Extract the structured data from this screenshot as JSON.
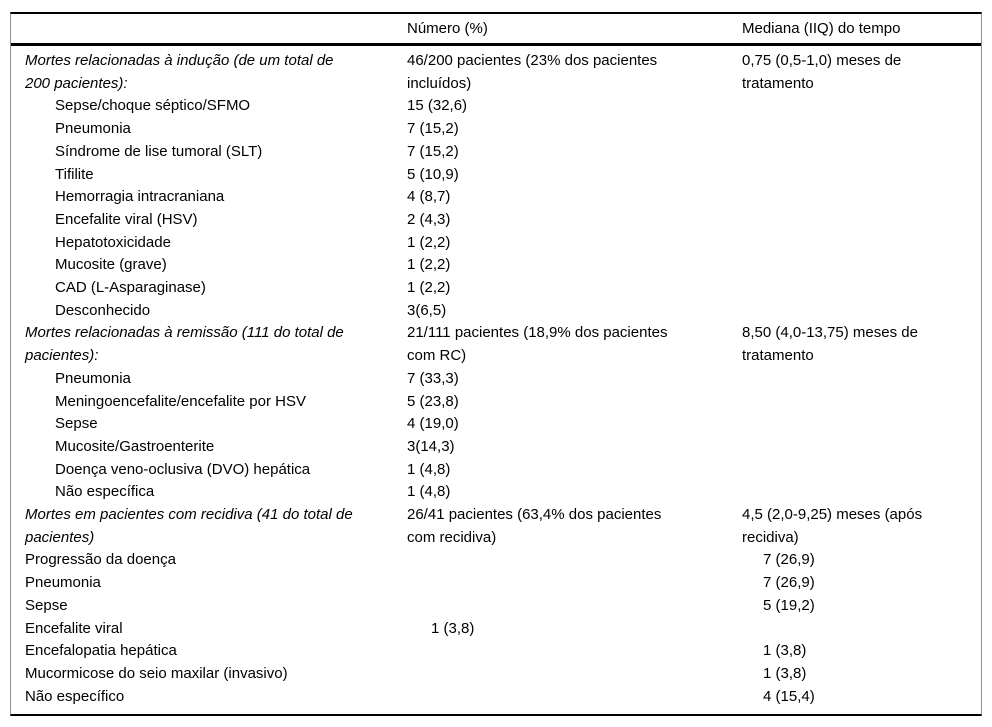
{
  "table": {
    "columns": [
      "",
      "Número (%)",
      "Mediana (IIQ) do tempo"
    ],
    "rows": [
      {
        "c1": "Mortes relacionadas à indução (de um total de\n200 pacientes):",
        "style": "section",
        "c2": "46/200 pacientes (23% dos pacientes\nincluídos)",
        "c3": "0,75 (0,5-1,0) meses de\ntratamento"
      },
      {
        "c1": "Sepse/choque séptico/SFMO",
        "style": "sub",
        "c2": "15 (32,6)",
        "c3": ""
      },
      {
        "c1": "Pneumonia",
        "style": "sub",
        "c2": "7 (15,2)",
        "c3": ""
      },
      {
        "c1": "Síndrome de lise tumoral (SLT)",
        "style": "sub",
        "c2": "7 (15,2)",
        "c3": ""
      },
      {
        "c1": "Tifilite",
        "style": "sub",
        "c2": "5 (10,9)",
        "c3": ""
      },
      {
        "c1": "Hemorragia intracraniana",
        "style": "sub",
        "c2": "4 (8,7)",
        "c3": ""
      },
      {
        "c1": "Encefalite viral (HSV)",
        "style": "sub",
        "c2": "2 (4,3)",
        "c3": ""
      },
      {
        "c1": "Hepatotoxicidade",
        "style": "sub",
        "c2": "1 (2,2)",
        "c3": ""
      },
      {
        "c1": "Mucosite (grave)",
        "style": "sub",
        "c2": "1 (2,2)",
        "c3": ""
      },
      {
        "c1": "CAD (L-Asparaginase)",
        "style": "sub",
        "c2": "1 (2,2)",
        "c3": ""
      },
      {
        "c1": "Desconhecido",
        "style": "sub",
        "c2": "3(6,5)",
        "c3": ""
      },
      {
        "c1": "Mortes relacionadas à remissão (111 do total de\npacientes):",
        "style": "section",
        "c2": "21/111 pacientes (18,9% dos pacientes\ncom RC)",
        "c3": "8,50 (4,0-13,75) meses de\ntratamento"
      },
      {
        "c1": "Pneumonia",
        "style": "sub",
        "c2": "7 (33,3)",
        "c3": ""
      },
      {
        "c1": "Meningoencefalite/encefalite por HSV",
        "style": "sub",
        "c2": "5 (23,8)",
        "c3": ""
      },
      {
        "c1": "Sepse",
        "style": "sub",
        "c2": "4 (19,0)",
        "c3": ""
      },
      {
        "c1": "Mucosite/Gastroenterite",
        "style": "sub",
        "c2": "3(14,3)",
        "c3": ""
      },
      {
        "c1": "Doença veno-oclusiva (DVO) hepática",
        "style": "sub",
        "c2": "1 (4,8)",
        "c3": ""
      },
      {
        "c1": "Não específica",
        "style": "sub",
        "c2": "1 (4,8)",
        "c3": ""
      },
      {
        "c1": "Mortes em pacientes com recidiva (41 do total de\npacientes)",
        "style": "section",
        "c2": "26/41 pacientes (63,4% dos pacientes\ncom recidiva)",
        "c3": "4,5 (2,0-9,25) meses (após\nrecidiva)"
      },
      {
        "c1": "Progressão da doença",
        "style": "plain",
        "c2": "",
        "c3": "7 (26,9)",
        "c3pad": true
      },
      {
        "c1": "Pneumonia",
        "style": "plain",
        "c2": "",
        "c3": "7 (26,9)",
        "c3pad": true
      },
      {
        "c1": "Sepse",
        "style": "plain",
        "c2": "",
        "c3": "5 (19,2)",
        "c3pad": true
      },
      {
        "c1": "Encefalite viral",
        "style": "plain",
        "c2": "1 (3,8)",
        "c2pad": true,
        "c3": ""
      },
      {
        "c1": "Encefalopatia hepática",
        "style": "plain",
        "c2": "",
        "c3": "1 (3,8)",
        "c3pad": true
      },
      {
        "c1": "Mucormicose do seio maxilar (invasivo)",
        "style": "plain",
        "c2": "",
        "c3": "1 (3,8)",
        "c3pad": true
      },
      {
        "c1": "Não específico",
        "style": "plain",
        "c2": "",
        "c3": "4 (15,4)",
        "c3pad": true
      }
    ]
  }
}
